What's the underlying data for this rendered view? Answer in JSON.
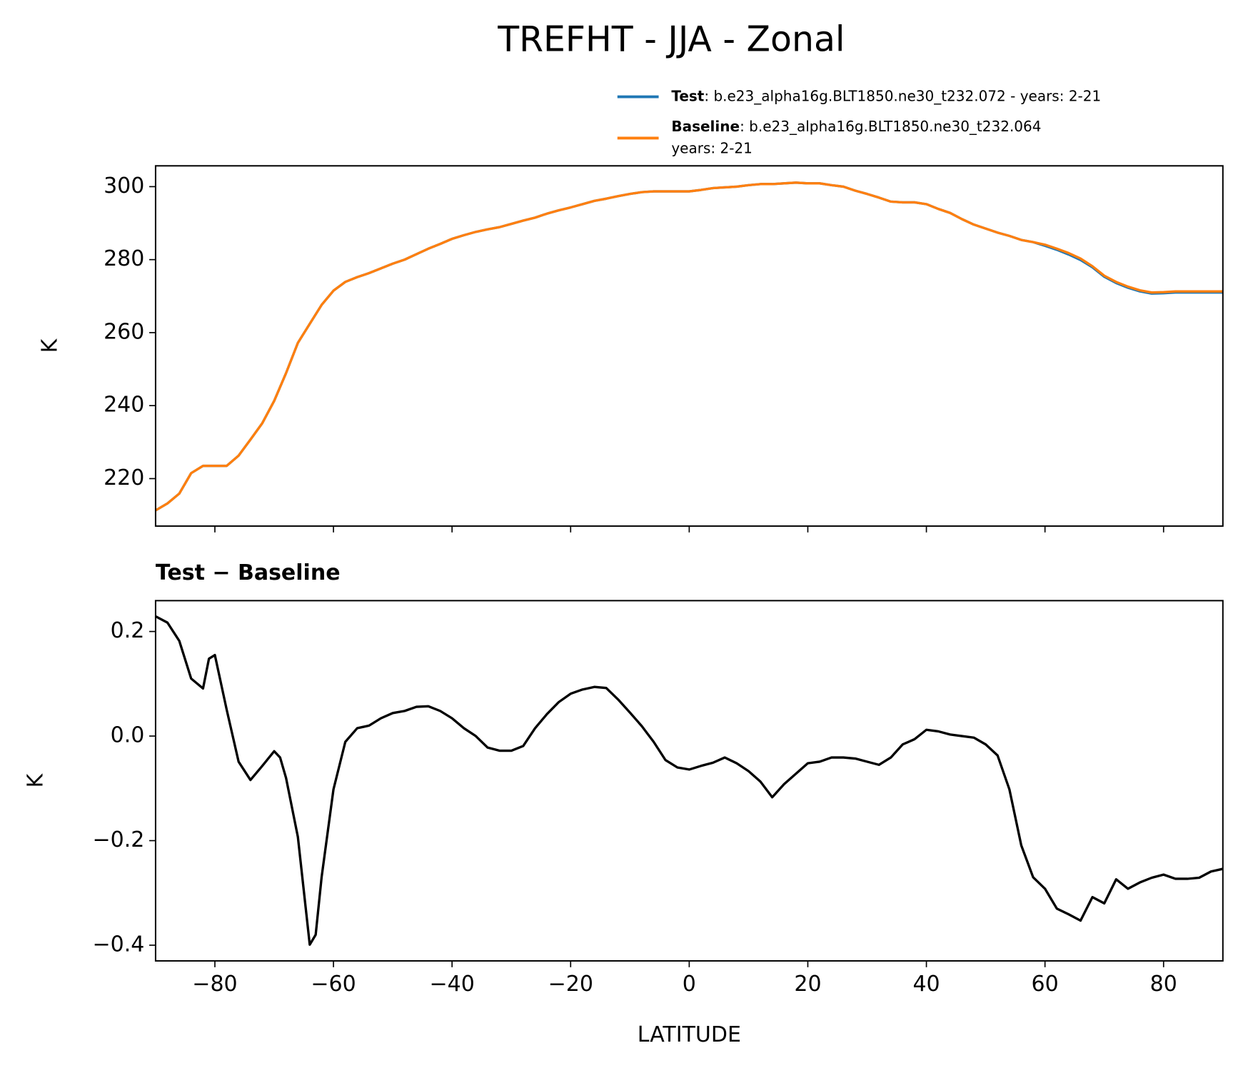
{
  "title": "TREFHT - JJA - Zonal",
  "chart_data": [
    {
      "type": "line",
      "ylabel": "K",
      "x": [
        -90,
        -88,
        -86,
        -84,
        -82,
        -80,
        -78,
        -76,
        -74,
        -72,
        -70,
        -68,
        -66,
        -64,
        -62,
        -60,
        -58,
        -56,
        -54,
        -52,
        -50,
        -48,
        -46,
        -44,
        -42,
        -40,
        -38,
        -36,
        -34,
        -32,
        -30,
        -28,
        -26,
        -24,
        -22,
        -20,
        -18,
        -16,
        -14,
        -12,
        -10,
        -8,
        -6,
        -4,
        -2,
        0,
        2,
        4,
        6,
        8,
        10,
        12,
        14,
        16,
        18,
        20,
        22,
        24,
        26,
        28,
        30,
        32,
        34,
        36,
        38,
        40,
        42,
        44,
        46,
        48,
        50,
        52,
        54,
        56,
        58,
        60,
        62,
        64,
        66,
        68,
        70,
        72,
        74,
        76,
        78,
        80,
        82,
        84,
        86,
        88,
        90
      ],
      "series": [
        {
          "name": "Test",
          "description": [
            ": b.e23_alpha16g.BLT1850.ne30_t232.072 - years: 2-21"
          ],
          "color": "#1f77b4",
          "values": [
            211.3,
            213.2,
            215.9,
            221.5,
            223.5,
            223.5,
            223.5,
            226.3,
            230.7,
            235.2,
            241.3,
            248.9,
            257.2,
            262.4,
            267.6,
            271.5,
            273.9,
            275.2,
            276.3,
            277.6,
            278.9,
            280,
            281.5,
            283,
            284.3,
            285.7,
            286.7,
            287.6,
            288.3,
            288.9,
            289.8,
            290.7,
            291.5,
            292.6,
            293.5,
            294.3,
            295.2,
            296.1,
            296.7,
            297.4,
            298,
            298.5,
            298.7,
            298.7,
            298.7,
            298.7,
            299.1,
            299.6,
            299.8,
            300,
            300.4,
            300.7,
            300.7,
            300.9,
            301.1,
            300.9,
            300.9,
            300.4,
            300,
            298.9,
            298,
            297,
            295.9,
            295.7,
            295.7,
            295.2,
            293.9,
            292.8,
            291.1,
            289.6,
            288.5,
            287.4,
            286.5,
            285.4,
            284.8,
            283.8,
            282.7,
            281.4,
            279.9,
            277.9,
            275.3,
            273.6,
            272.3,
            271.3,
            270.7,
            270.8,
            271,
            271,
            271,
            271,
            271
          ]
        },
        {
          "name": "Baseline",
          "description": [
            ": b.e23_alpha16g.BLT1850.ne30_t232.064",
            "years: 2-21"
          ],
          "color": "#ff7f0e",
          "values": [
            211.3,
            213.2,
            215.9,
            221.5,
            223.5,
            223.5,
            223.5,
            226.3,
            230.7,
            235.2,
            241.3,
            248.9,
            257.2,
            262.4,
            267.6,
            271.5,
            273.9,
            275.2,
            276.3,
            277.6,
            278.9,
            280,
            281.5,
            283,
            284.3,
            285.7,
            286.7,
            287.6,
            288.3,
            288.9,
            289.8,
            290.7,
            291.5,
            292.6,
            293.5,
            294.3,
            295.2,
            296.1,
            296.7,
            297.4,
            298,
            298.5,
            298.7,
            298.7,
            298.7,
            298.7,
            299.1,
            299.6,
            299.8,
            300,
            300.4,
            300.7,
            300.7,
            300.9,
            301.1,
            300.9,
            300.9,
            300.4,
            300,
            298.9,
            298,
            297,
            295.9,
            295.7,
            295.7,
            295.2,
            293.9,
            292.8,
            291.1,
            289.6,
            288.5,
            287.4,
            286.5,
            285.4,
            284.8,
            284.1,
            283,
            281.8,
            280.3,
            278.2,
            275.6,
            273.9,
            272.6,
            271.6,
            271,
            271.1,
            271.3,
            271.3,
            271.3,
            271.3,
            271.3
          ]
        }
      ],
      "xlim": [
        -90,
        90
      ],
      "xticks": [
        {
          "value": -80,
          "label": "−80"
        },
        {
          "value": -60,
          "label": "−60"
        },
        {
          "value": -40,
          "label": "−40"
        },
        {
          "value": -20,
          "label": "−20"
        },
        0,
        20,
        40,
        60,
        80
      ],
      "ylim": [
        207,
        305.7
      ],
      "yticks": [
        220,
        240,
        260,
        280,
        300
      ]
    },
    {
      "type": "line",
      "title": "Test − Baseline",
      "ylabel": "K",
      "xlabel": "LATITUDE",
      "x": [
        -90,
        -88,
        -86,
        -84,
        -82,
        -81,
        -80,
        -78,
        -76,
        -74,
        -72,
        -70,
        -69,
        -68,
        -66,
        -64,
        -63,
        -62,
        -60,
        -58,
        -56,
        -54,
        -52,
        -50,
        -48,
        -46,
        -44,
        -42,
        -40,
        -38,
        -36,
        -34,
        -32,
        -30,
        -28,
        -26,
        -24,
        -22,
        -20,
        -18,
        -16,
        -14,
        -12,
        -10,
        -8,
        -6,
        -4,
        -2,
        0,
        2,
        4,
        6,
        8,
        10,
        12,
        14,
        16,
        18,
        20,
        22,
        24,
        26,
        28,
        30,
        32,
        34,
        36,
        38,
        40,
        42,
        44,
        46,
        48,
        50,
        52,
        54,
        56,
        58,
        60,
        62,
        64,
        66,
        68,
        70,
        72,
        74,
        76,
        78,
        80,
        82,
        84,
        86,
        88,
        90
      ],
      "series": [
        {
          "name": "Test − Baseline",
          "color": "#000000",
          "values": [
            0.229,
            0.217,
            0.182,
            0.11,
            0.091,
            0.148,
            0.155,
            0.05,
            -0.049,
            -0.084,
            -0.057,
            -0.029,
            -0.041,
            -0.08,
            -0.193,
            -0.399,
            -0.38,
            -0.27,
            -0.102,
            -0.011,
            0.015,
            0.02,
            0.034,
            0.044,
            0.048,
            0.056,
            0.057,
            0.048,
            0.034,
            0.015,
            0,
            -0.022,
            -0.028,
            -0.028,
            -0.019,
            0.015,
            0.042,
            0.065,
            0.081,
            0.089,
            0.094,
            0.092,
            0.07,
            0.045,
            0.019,
            -0.011,
            -0.046,
            -0.06,
            -0.064,
            -0.057,
            -0.051,
            -0.041,
            -0.052,
            -0.067,
            -0.087,
            -0.117,
            -0.092,
            -0.072,
            -0.052,
            -0.049,
            -0.041,
            -0.041,
            -0.043,
            -0.049,
            -0.055,
            -0.041,
            -0.016,
            -0.006,
            0.012,
            0.009,
            0.003,
            0,
            -0.003,
            -0.016,
            -0.037,
            -0.102,
            -0.209,
            -0.27,
            -0.292,
            -0.33,
            -0.341,
            -0.353,
            -0.308,
            -0.32,
            -0.274,
            -0.292,
            -0.28,
            -0.271,
            -0.265,
            -0.273,
            -0.273,
            -0.271,
            -0.259,
            -0.254
          ]
        }
      ],
      "xlim": [
        -90,
        90
      ],
      "xticks": [
        {
          "value": -80,
          "label": "−80"
        },
        {
          "value": -60,
          "label": "−60"
        },
        {
          "value": -40,
          "label": "−40"
        },
        {
          "value": -20,
          "label": "−20"
        },
        0,
        20,
        40,
        60,
        80
      ],
      "ylim": [
        -0.43,
        0.259
      ],
      "yticks": [
        {
          "value": -0.4,
          "label": "−0.4"
        },
        {
          "value": -0.2,
          "label": "−0.2"
        },
        {
          "value": 0,
          "label": "0.0"
        },
        0.2
      ]
    }
  ]
}
